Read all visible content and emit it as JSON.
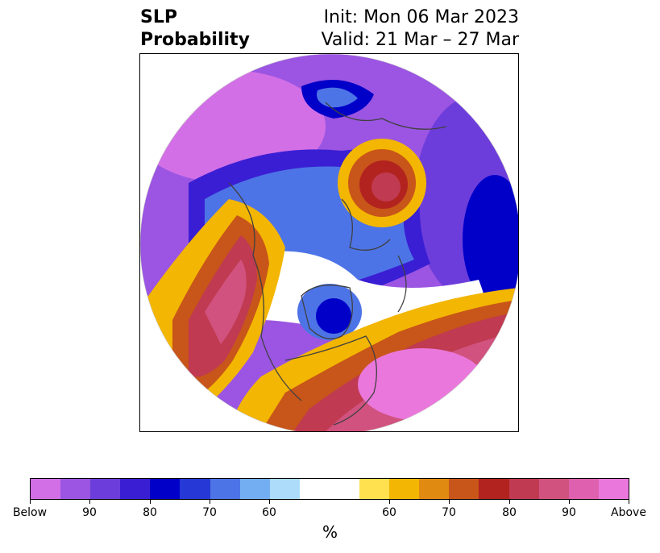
{
  "title": {
    "left_line1": "SLP",
    "left_line2": "Probability",
    "right_line1": "Init: Mon 06 Mar 2023",
    "right_line2": "Valid: 21 Mar – 27 Mar"
  },
  "colorbar": {
    "unit": "%",
    "labels": [
      "Below",
      "90",
      "80",
      "70",
      "60",
      "60",
      "70",
      "80",
      "90",
      "Above"
    ],
    "colors_below": [
      "#d36fe6",
      "#9b55e2",
      "#6d3ddb",
      "#3a1ed3",
      "#0000c8",
      "#2638d6",
      "#4d74e6",
      "#74aef2",
      "#addcfb"
    ],
    "neutral": "#ffffff",
    "colors_above": [
      "#ffe04f",
      "#f3b602",
      "#e08a12",
      "#c85519",
      "#b2231f",
      "#c03a52",
      "#d1527e",
      "#de60ae",
      "#ea78dc"
    ]
  },
  "map": {
    "projection": "north-polar",
    "land_border_color": "#404040"
  }
}
